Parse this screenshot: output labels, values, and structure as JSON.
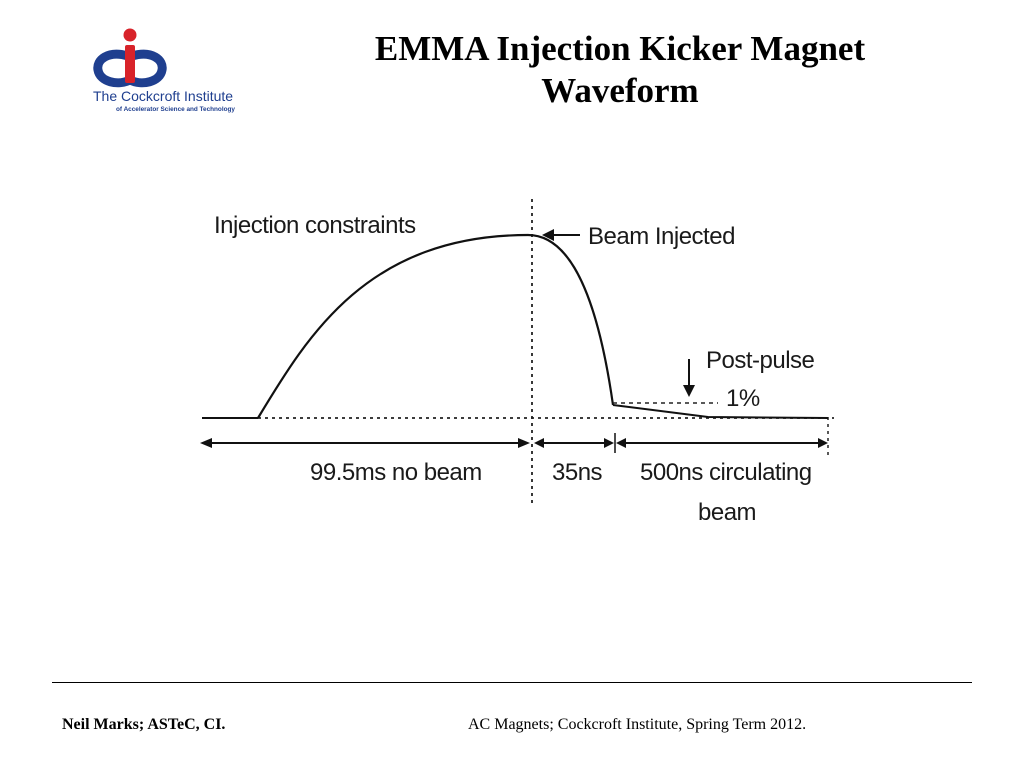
{
  "slide": {
    "title_line1": "EMMA Injection Kicker Magnet",
    "title_line2": "Waveform"
  },
  "logo": {
    "name": "The Cockcroft Institute",
    "tagline": "of Accelerator Science and Technology",
    "colors": {
      "blue": "#1f3f8f",
      "red": "#d8232a"
    }
  },
  "figure": {
    "labels": {
      "injection_constraints": "Injection constraints",
      "beam_injected": "Beam Injected",
      "post_pulse": "Post-pulse",
      "post_pulse_value": "1%",
      "no_beam": "99.5ms no beam",
      "fall_time": "35ns",
      "circulating_line1": "500ns circulating",
      "circulating_line2": "beam"
    }
  },
  "footer": {
    "left": "Neil Marks; ASTeC, CI.",
    "right": "AC Magnets; Cockcroft Institute, Spring Term 2012."
  }
}
